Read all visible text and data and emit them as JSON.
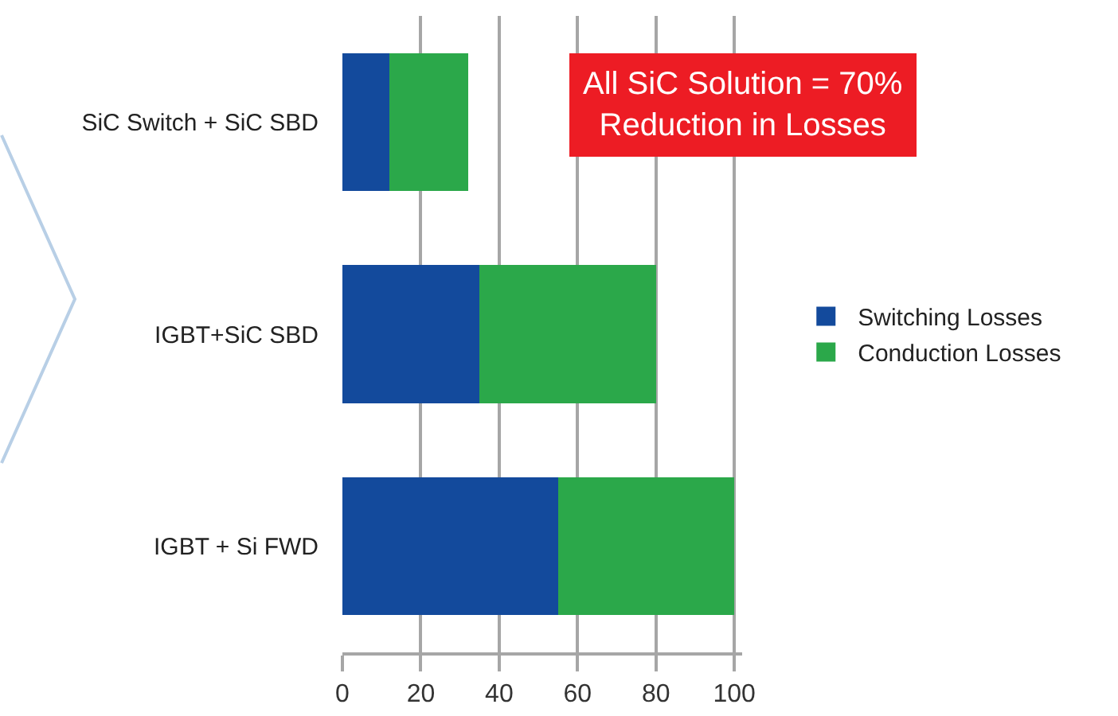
{
  "chart_data": {
    "type": "bar",
    "orientation": "horizontal",
    "stacked": true,
    "categories": [
      "SiC Switch + SiC SBD",
      "IGBT+SiC SBD",
      "IGBT + Si FWD"
    ],
    "series": [
      {
        "name": "Switching Losses",
        "color": "#134a9c",
        "values": [
          12,
          35,
          55
        ]
      },
      {
        "name": "Conduction Losses",
        "color": "#2ba84a",
        "values": [
          20,
          45,
          45
        ]
      }
    ],
    "xlim": [
      0,
      102
    ],
    "xticks": [
      0,
      20,
      40,
      60,
      80,
      100
    ],
    "grid": "x",
    "legend": "right",
    "annotations": [
      "All SiC Solution = 70%\nReduction in Losses"
    ]
  }
}
